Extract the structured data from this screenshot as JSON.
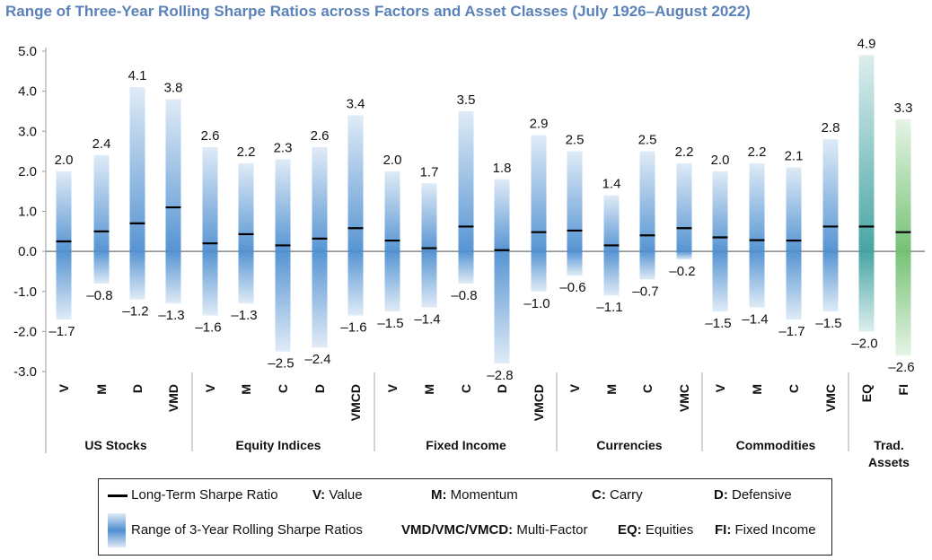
{
  "chart_data": {
    "type": "range",
    "title": "Range of Three-Year Rolling Sharpe Ratios across Factors and Asset Classes (July 1926–August 2022)",
    "ylim": [
      -3.0,
      5.0
    ],
    "yticks": [
      "5.0",
      "4.0",
      "3.0",
      "2.0",
      "1.0",
      "0.0",
      "-1.0",
      "-2.0",
      "-3.0"
    ],
    "groups": [
      {
        "name": "US Stocks",
        "bars": [
          {
            "cat": "V",
            "max": 2.0,
            "min": -1.7,
            "lt": 0.25,
            "max_label": "2.0",
            "min_label": "–1.7"
          },
          {
            "cat": "M",
            "max": 2.4,
            "min": -0.8,
            "lt": 0.5,
            "max_label": "2.4",
            "min_label": "–0.8"
          },
          {
            "cat": "D",
            "max": 4.1,
            "min": -1.2,
            "lt": 0.7,
            "max_label": "4.1",
            "min_label": "–1.2"
          },
          {
            "cat": "VMD",
            "max": 3.8,
            "min": -1.3,
            "lt": 1.1,
            "max_label": "3.8",
            "min_label": "–1.3"
          }
        ]
      },
      {
        "name": "Equity Indices",
        "bars": [
          {
            "cat": "V",
            "max": 2.6,
            "min": -1.6,
            "lt": 0.2,
            "max_label": "2.6",
            "min_label": "–1.6"
          },
          {
            "cat": "M",
            "max": 2.2,
            "min": -1.3,
            "lt": 0.43,
            "max_label": "2.2",
            "min_label": "–1.3"
          },
          {
            "cat": "C",
            "max": 2.3,
            "min": -2.5,
            "lt": 0.15,
            "max_label": "2.3",
            "min_label": "–2.5"
          },
          {
            "cat": "D",
            "max": 2.6,
            "min": -2.4,
            "lt": 0.32,
            "max_label": "2.6",
            "min_label": "–2.4"
          },
          {
            "cat": "VMCD",
            "max": 3.4,
            "min": -1.6,
            "lt": 0.58,
            "max_label": "3.4",
            "min_label": "–1.6"
          }
        ]
      },
      {
        "name": "Fixed Income",
        "bars": [
          {
            "cat": "V",
            "max": 2.0,
            "min": -1.5,
            "lt": 0.27,
            "max_label": "2.0",
            "min_label": "–1.5"
          },
          {
            "cat": "M",
            "max": 1.7,
            "min": -1.4,
            "lt": 0.08,
            "max_label": "1.7",
            "min_label": "–1.4"
          },
          {
            "cat": "C",
            "max": 3.5,
            "min": -0.8,
            "lt": 0.62,
            "max_label": "3.5",
            "min_label": "–0.8"
          },
          {
            "cat": "D",
            "max": 1.8,
            "min": -2.8,
            "lt": 0.03,
            "max_label": "1.8",
            "min_label": "–2.8"
          },
          {
            "cat": "VMCD",
            "max": 2.9,
            "min": -1.0,
            "lt": 0.48,
            "max_label": "2.9",
            "min_label": "–1.0"
          }
        ]
      },
      {
        "name": "Currencies",
        "bars": [
          {
            "cat": "V",
            "max": 2.5,
            "min": -0.6,
            "lt": 0.52,
            "max_label": "2.5",
            "min_label": "–0.6"
          },
          {
            "cat": "M",
            "max": 1.4,
            "min": -1.1,
            "lt": 0.15,
            "max_label": "1.4",
            "min_label": "–1.1"
          },
          {
            "cat": "C",
            "max": 2.5,
            "min": -0.7,
            "lt": 0.4,
            "max_label": "2.5",
            "min_label": "–0.7"
          },
          {
            "cat": "VMC",
            "max": 2.2,
            "min": -0.2,
            "lt": 0.58,
            "max_label": "2.2",
            "min_label": "–0.2"
          }
        ]
      },
      {
        "name": "Commodities",
        "bars": [
          {
            "cat": "V",
            "max": 2.0,
            "min": -1.5,
            "lt": 0.35,
            "max_label": "2.0",
            "min_label": "–1.5"
          },
          {
            "cat": "M",
            "max": 2.2,
            "min": -1.4,
            "lt": 0.28,
            "max_label": "2.2",
            "min_label": "–1.4"
          },
          {
            "cat": "C",
            "max": 2.1,
            "min": -1.7,
            "lt": 0.27,
            "max_label": "2.1",
            "min_label": "–1.7"
          },
          {
            "cat": "VMC",
            "max": 2.8,
            "min": -1.5,
            "lt": 0.62,
            "max_label": "2.8",
            "min_label": "–1.5"
          }
        ]
      },
      {
        "name": "Trad.\nAssets",
        "bars": [
          {
            "cat": "EQ",
            "max": 4.9,
            "min": -2.0,
            "lt": 0.62,
            "max_label": "4.9",
            "min_label": "–2.0",
            "color": "#3fa0a0"
          },
          {
            "cat": "FI",
            "max": 3.3,
            "min": -2.6,
            "lt": 0.48,
            "max_label": "3.3",
            "min_label": "–2.6",
            "color": "#6fbf6f"
          }
        ]
      }
    ],
    "default_color": "#4e8fd0"
  },
  "legend": {
    "lt_label": "Long-Term Sharpe Ratio",
    "v_key": "V:",
    "v_text": " Value",
    "m_key": "M:",
    "m_text": " Momentum",
    "c_key": "C:",
    "c_text": " Carry",
    "d_key": "D:",
    "d_text": " Defensive",
    "range_label": "Range of 3-Year Rolling Sharpe Ratios",
    "mf_key": "VMD/VMC/VMCD:",
    "mf_text": " Multi-Factor",
    "eq_key": "EQ:",
    "eq_text": " Equities",
    "fi_key": "FI:",
    "fi_text": " Fixed Income"
  }
}
